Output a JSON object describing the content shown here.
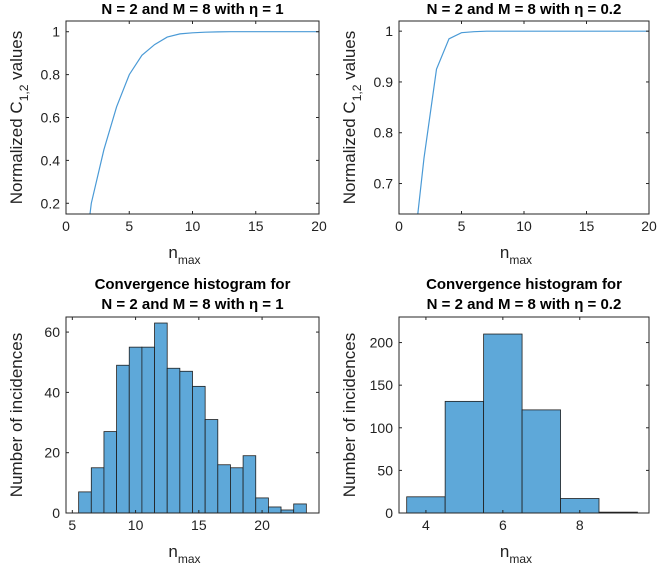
{
  "chart_data": [
    {
      "type": "line",
      "title": "N = 2 and M = 8 with η = 1",
      "xlabel": "n",
      "xlabel_sub": "max",
      "ylabel": "Normalized C",
      "ylabel_sub": "1,2",
      "ylabel_tail": " values",
      "xlim": [
        0,
        20
      ],
      "ylim": [
        0.15,
        1.05
      ],
      "xticks": [
        0,
        5,
        10,
        15,
        20
      ],
      "yticks": [
        0.2,
        0.4,
        0.6,
        0.8,
        1
      ],
      "ytick_labels": [
        "0.2",
        "0.4",
        "0.6",
        "0.8",
        "1"
      ],
      "color": "#4a9ad6",
      "x": [
        1.9,
        2,
        3,
        4,
        5,
        6,
        7,
        8,
        9,
        10,
        11,
        12,
        13,
        14,
        15,
        16,
        17,
        18,
        19,
        20
      ],
      "y": [
        0.15,
        0.2,
        0.45,
        0.65,
        0.8,
        0.89,
        0.94,
        0.975,
        0.99,
        0.995,
        0.998,
        0.999,
        1.0,
        1.0,
        1.0,
        1.0,
        1.0,
        1.0,
        1.0,
        1.0
      ]
    },
    {
      "type": "line",
      "title": "N = 2 and M = 8 with η = 0.2",
      "xlabel": "n",
      "xlabel_sub": "max",
      "ylabel": "Normalized C",
      "ylabel_sub": "1,2",
      "ylabel_tail": " values",
      "xlim": [
        0,
        20
      ],
      "ylim": [
        0.64,
        1.02
      ],
      "xticks": [
        0,
        5,
        10,
        15,
        20
      ],
      "yticks": [
        0.7,
        0.8,
        0.9,
        1
      ],
      "ytick_labels": [
        "0.7",
        "0.8",
        "0.9",
        "1"
      ],
      "color": "#4a9ad6",
      "x": [
        1.5,
        2,
        3,
        4,
        5,
        6,
        7,
        8,
        10,
        12,
        15,
        20
      ],
      "y": [
        0.64,
        0.75,
        0.925,
        0.985,
        0.997,
        0.999,
        1.0,
        1.0,
        1.0,
        1.0,
        1.0,
        1.0
      ]
    },
    {
      "type": "bar",
      "title_lines": [
        "Convergence histogram for",
        "N = 2 and M = 8 with η = 1"
      ],
      "xlabel": "n",
      "xlabel_sub": "max",
      "ylabel": "Number of incidences",
      "xlim": [
        4.5,
        24.5
      ],
      "ylim": [
        0,
        65
      ],
      "xticks": [
        5,
        10,
        15,
        20
      ],
      "yticks": [
        0,
        20,
        40,
        60
      ],
      "bin_width": 1,
      "color": "#5ea8d9",
      "categories": [
        6,
        7,
        8,
        9,
        10,
        11,
        12,
        13,
        14,
        15,
        16,
        17,
        18,
        19,
        20,
        21,
        22,
        23
      ],
      "values": [
        7,
        15,
        27,
        49,
        55,
        55,
        63,
        48,
        47,
        42,
        31,
        16,
        15,
        19,
        5,
        2,
        1,
        3
      ]
    },
    {
      "type": "bar",
      "title_lines": [
        "Convergence histogram for",
        "N = 2 and M = 8 with η = 0.2"
      ],
      "xlabel": "n",
      "xlabel_sub": "max",
      "ylabel": "Number of incidences",
      "xlim": [
        3.3,
        9.8
      ],
      "ylim": [
        0,
        230
      ],
      "xticks": [
        4,
        6,
        8
      ],
      "yticks": [
        0,
        50,
        100,
        150,
        200
      ],
      "bin_width": 1,
      "color": "#5ea8d9",
      "categories": [
        4,
        5,
        6,
        7,
        8,
        9
      ],
      "values": [
        19,
        131,
        210,
        121,
        17,
        1
      ]
    }
  ]
}
